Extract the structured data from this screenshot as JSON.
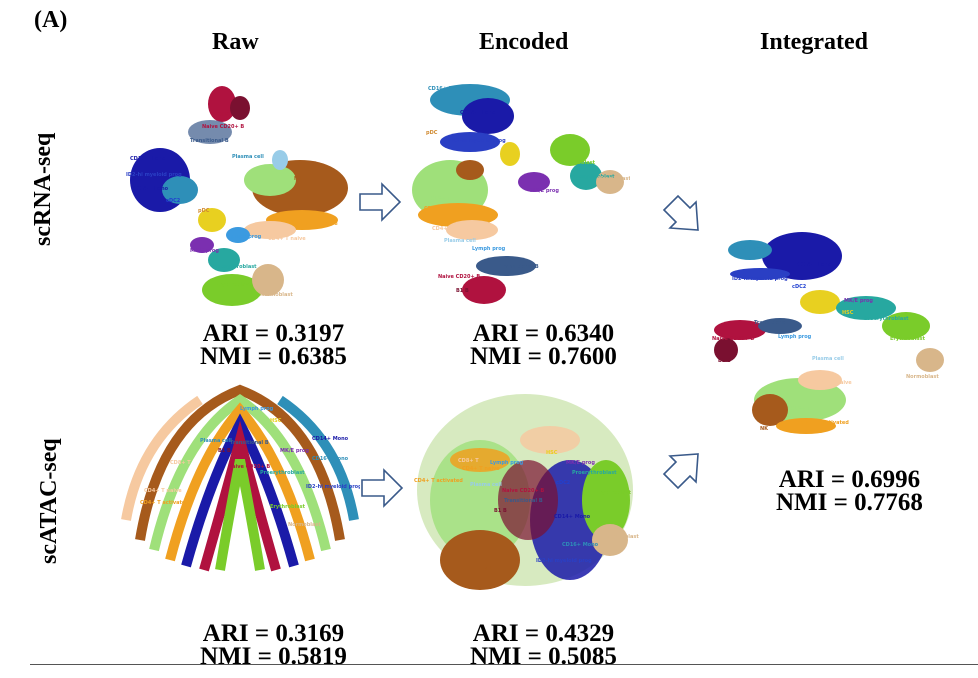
{
  "panel_label": "(A)",
  "columns": {
    "raw": "Raw",
    "encoded": "Encoded",
    "integrated": "Integrated"
  },
  "rows": {
    "rna": "scRNA-seq",
    "atac": "scATAC-seq"
  },
  "metrics": {
    "rna_raw": {
      "ari": "ARI = 0.3197",
      "nmi": "NMI = 0.6385"
    },
    "rna_encoded": {
      "ari": "ARI = 0.6340",
      "nmi": "NMI = 0.7600"
    },
    "atac_raw": {
      "ari": "ARI = 0.3169",
      "nmi": "NMI = 0.5819"
    },
    "atac_encoded": {
      "ari": "ARI = 0.4329",
      "nmi": "NMI = 0.5085"
    },
    "integrated": {
      "ari": "ARI = 0.6996",
      "nmi": "NMI = 0.7768"
    }
  },
  "cell_types": {
    "cd14_mono": "CD14+ Mono",
    "cd16_mono": "CD16+ Mono",
    "id2_myeloid": "ID2-hi myeloid prog",
    "naive_b": "Naive CD20+ B",
    "b1_b": "B1 B",
    "transitional_b": "Transitional B",
    "plasma": "Plasma cell",
    "nk": "NK",
    "cd8_t": "CD8+ T",
    "cd4_t_act": "CD4+ T activated",
    "cd4_t_naive": "CD4+ T naive",
    "erythroblast": "Erythroblast",
    "proerythroblast": "Proerythroblast",
    "normoblast": "Normoblast",
    "mk_e_prog": "MK/E prog",
    "lymph_prog": "Lymph prog",
    "hsc": "HSC",
    "cdc2": "cDC2",
    "pdc": "pDC"
  },
  "palette": {
    "mono14": "#1a1aa8",
    "mono16": "#2e8fb8",
    "myeloid": "#2a3fc4",
    "naiveB": "#b0123f",
    "b1b": "#7a1030",
    "transB": "#3a5a8a",
    "nk": "#a65a1c",
    "cd8": "#9fe07a",
    "cd4act": "#f0a020",
    "cd4naive": "#f6c9a0",
    "ery": "#7acc2a",
    "proery": "#27a8a0",
    "normo": "#d8b68a",
    "mk": "#7b2fb0",
    "lymph": "#3b9ae0",
    "hsc": "#e8d020",
    "cdc2": "#2040d0",
    "pdc": "#d08a30",
    "plasma": "#98cce8"
  }
}
